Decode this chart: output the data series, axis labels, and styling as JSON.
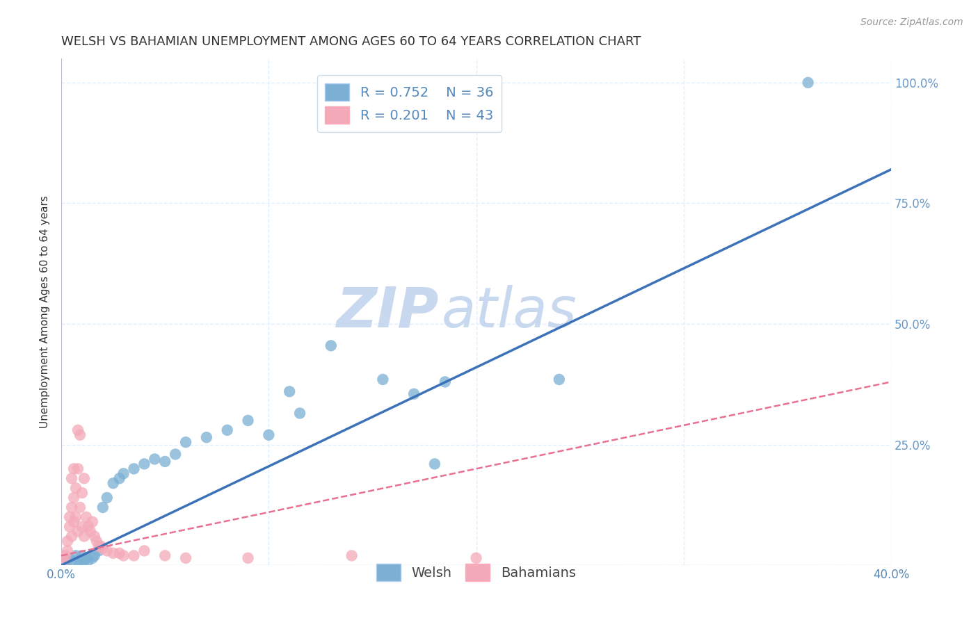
{
  "title": "WELSH VS BAHAMIAN UNEMPLOYMENT AMONG AGES 60 TO 64 YEARS CORRELATION CHART",
  "source": "Source: ZipAtlas.com",
  "ylabel": "Unemployment Among Ages 60 to 64 years",
  "xlim": [
    0.0,
    0.4
  ],
  "ylim": [
    0.0,
    1.05
  ],
  "xticks": [
    0.0,
    0.1,
    0.2,
    0.3,
    0.4
  ],
  "xticklabels": [
    "0.0%",
    "",
    "",
    "",
    "40.0%"
  ],
  "ytick_positions": [
    0.0,
    0.25,
    0.5,
    0.75,
    1.0
  ],
  "yticklabels": [
    "",
    "25.0%",
    "50.0%",
    "75.0%",
    "100.0%"
  ],
  "welsh_R": 0.752,
  "welsh_N": 36,
  "bahamian_R": 0.201,
  "bahamian_N": 43,
  "welsh_color": "#7BAFD4",
  "bahamian_color": "#F4A9B8",
  "trend_welsh_color": "#3B72B8",
  "trend_bahamian_color": "#E87090",
  "watermark_zip": "ZIP",
  "watermark_atlas": "atlas",
  "watermark_color": "#C8D8EE",
  "welsh_scatter": [
    [
      0.003,
      0.01
    ],
    [
      0.005,
      0.01
    ],
    [
      0.007,
      0.02
    ],
    [
      0.008,
      0.01
    ],
    [
      0.009,
      0.01
    ],
    [
      0.01,
      0.02
    ],
    [
      0.011,
      0.01
    ],
    [
      0.012,
      0.015
    ],
    [
      0.013,
      0.01
    ],
    [
      0.015,
      0.015
    ],
    [
      0.016,
      0.02
    ],
    [
      0.018,
      0.03
    ],
    [
      0.02,
      0.12
    ],
    [
      0.022,
      0.14
    ],
    [
      0.025,
      0.17
    ],
    [
      0.028,
      0.18
    ],
    [
      0.03,
      0.19
    ],
    [
      0.035,
      0.2
    ],
    [
      0.04,
      0.21
    ],
    [
      0.045,
      0.22
    ],
    [
      0.05,
      0.215
    ],
    [
      0.055,
      0.23
    ],
    [
      0.06,
      0.255
    ],
    [
      0.07,
      0.265
    ],
    [
      0.08,
      0.28
    ],
    [
      0.09,
      0.3
    ],
    [
      0.1,
      0.27
    ],
    [
      0.11,
      0.36
    ],
    [
      0.115,
      0.315
    ],
    [
      0.13,
      0.455
    ],
    [
      0.155,
      0.385
    ],
    [
      0.17,
      0.355
    ],
    [
      0.18,
      0.21
    ],
    [
      0.185,
      0.38
    ],
    [
      0.24,
      0.385
    ],
    [
      0.36,
      1.0
    ]
  ],
  "bahamian_scatter": [
    [
      0.001,
      0.01
    ],
    [
      0.002,
      0.02
    ],
    [
      0.003,
      0.03
    ],
    [
      0.003,
      0.05
    ],
    [
      0.004,
      0.08
    ],
    [
      0.004,
      0.1
    ],
    [
      0.005,
      0.06
    ],
    [
      0.005,
      0.12
    ],
    [
      0.005,
      0.18
    ],
    [
      0.006,
      0.09
    ],
    [
      0.006,
      0.14
    ],
    [
      0.006,
      0.2
    ],
    [
      0.007,
      0.1
    ],
    [
      0.007,
      0.16
    ],
    [
      0.008,
      0.07
    ],
    [
      0.008,
      0.2
    ],
    [
      0.008,
      0.28
    ],
    [
      0.009,
      0.12
    ],
    [
      0.009,
      0.27
    ],
    [
      0.01,
      0.08
    ],
    [
      0.01,
      0.15
    ],
    [
      0.011,
      0.06
    ],
    [
      0.011,
      0.18
    ],
    [
      0.012,
      0.1
    ],
    [
      0.013,
      0.08
    ],
    [
      0.014,
      0.07
    ],
    [
      0.015,
      0.09
    ],
    [
      0.016,
      0.06
    ],
    [
      0.017,
      0.05
    ],
    [
      0.018,
      0.04
    ],
    [
      0.019,
      0.04
    ],
    [
      0.02,
      0.035
    ],
    [
      0.022,
      0.03
    ],
    [
      0.025,
      0.025
    ],
    [
      0.028,
      0.025
    ],
    [
      0.03,
      0.02
    ],
    [
      0.035,
      0.02
    ],
    [
      0.04,
      0.03
    ],
    [
      0.05,
      0.02
    ],
    [
      0.06,
      0.015
    ],
    [
      0.09,
      0.015
    ],
    [
      0.14,
      0.02
    ],
    [
      0.2,
      0.015
    ]
  ],
  "welsh_trend_x": [
    0.0,
    0.4
  ],
  "welsh_trend_y": [
    0.0,
    0.82
  ],
  "bahamian_trend_x": [
    0.0,
    0.4
  ],
  "bahamian_trend_y": [
    0.02,
    0.38
  ],
  "grid_color": "#DDEEFF",
  "tick_color": "#5588BB",
  "right_tick_color": "#6699CC",
  "title_fontsize": 13,
  "label_fontsize": 11,
  "tick_fontsize": 12,
  "legend_fontsize": 14
}
